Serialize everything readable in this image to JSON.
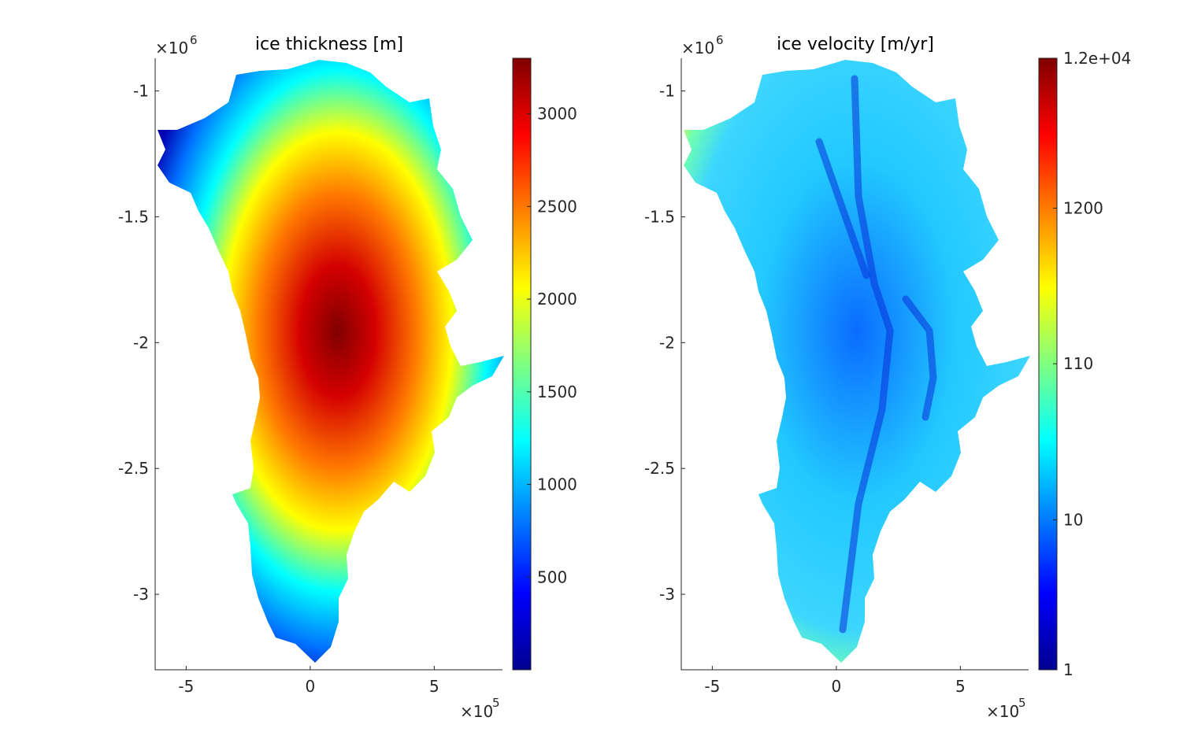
{
  "chart_data": [
    {
      "type": "heatmap",
      "title": "ice thickness [m]",
      "xlabel": "",
      "ylabel": "",
      "xlim": [
        -625000,
        775000
      ],
      "ylim": [
        -3300000,
        -870000
      ],
      "x_ticks": [
        -500000,
        0,
        500000
      ],
      "x_tick_labels": [
        "-5",
        "0",
        "5"
      ],
      "x_exponent_base": "×10",
      "x_exponent": "5",
      "y_ticks": [
        -1000000,
        -1500000,
        -2000000,
        -2500000,
        -3000000
      ],
      "y_tick_labels": [
        "-1",
        "-1.5",
        "-2",
        "-2.5",
        "-3"
      ],
      "y_exponent_base": "×10",
      "y_exponent": "6",
      "colormap": "jet",
      "colorbar": {
        "scale": "linear",
        "range": [
          0,
          3300
        ],
        "ticks": [
          500,
          1000,
          1500,
          2000,
          2500,
          3000
        ],
        "tick_labels": [
          "500",
          "1000",
          "1500",
          "2000",
          "2500",
          "3000"
        ]
      }
    },
    {
      "type": "heatmap",
      "title": "ice velocity [m/yr]",
      "xlabel": "",
      "ylabel": "",
      "xlim": [
        -625000,
        775000
      ],
      "ylim": [
        -3300000,
        -870000
      ],
      "x_ticks": [
        -500000,
        0,
        500000
      ],
      "x_tick_labels": [
        "-5",
        "0",
        "5"
      ],
      "x_exponent_base": "×10",
      "x_exponent": "5",
      "y_ticks": [
        -1000000,
        -1500000,
        -2000000,
        -2500000,
        -3000000
      ],
      "y_tick_labels": [
        "-1",
        "-1.5",
        "-2",
        "-2.5",
        "-3"
      ],
      "y_exponent_base": "×10",
      "y_exponent": "6",
      "colormap": "jet",
      "colorbar": {
        "scale": "log",
        "range": [
          1,
          12000
        ],
        "ticks": [
          1,
          10,
          110,
          1200,
          12000
        ],
        "tick_labels": [
          "1",
          "10",
          "110",
          "1200",
          "1.2e+04"
        ]
      }
    }
  ]
}
